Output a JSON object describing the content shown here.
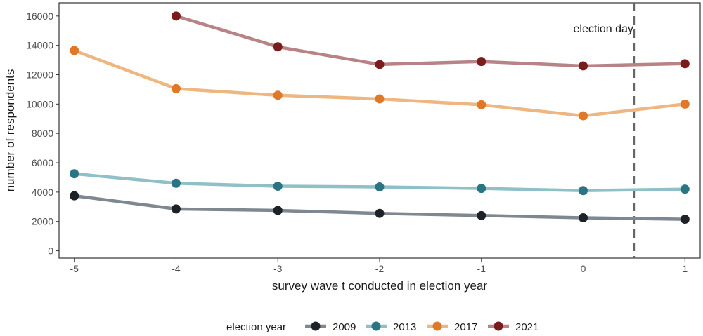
{
  "chart_data": {
    "type": "line",
    "xlabel": "survey wave t conducted in election year",
    "ylabel": "number of respondents",
    "xlim": [
      -5.15,
      1.15
    ],
    "ylim": [
      -500,
      16900
    ],
    "x_ticks": [
      -5,
      -4,
      -3,
      -2,
      -1,
      0,
      1
    ],
    "y_ticks": [
      0,
      2000,
      4000,
      6000,
      8000,
      10000,
      12000,
      14000,
      16000
    ],
    "grid": false,
    "annotation": {
      "text": "election day",
      "x": 0.5
    },
    "legend": {
      "title": "election year",
      "position": "bottom"
    },
    "series": [
      {
        "name": "2009",
        "color": "#1c2228",
        "line_color": "#7f8790",
        "x": [
          -5,
          -4,
          -3,
          -2,
          -1,
          0,
          1
        ],
        "values": [
          3750,
          2850,
          2750,
          2550,
          2400,
          2250,
          2150
        ]
      },
      {
        "name": "2013",
        "color": "#2a7484",
        "line_color": "#8fbfc7",
        "x": [
          -5,
          -4,
          -3,
          -2,
          -1,
          0,
          1
        ],
        "values": [
          5250,
          4600,
          4400,
          4350,
          4250,
          4100,
          4200
        ]
      },
      {
        "name": "2017",
        "color": "#e0782a",
        "line_color": "#eeb781",
        "x": [
          -5,
          -4,
          -3,
          -2,
          -1,
          0,
          1
        ],
        "values": [
          13650,
          11050,
          10600,
          10350,
          9950,
          9200,
          10000
        ]
      },
      {
        "name": "2021",
        "color": "#7a1c1c",
        "line_color": "#b88386",
        "x": [
          -4,
          -3,
          -2,
          -1,
          0,
          1
        ],
        "values": [
          16000,
          13900,
          12700,
          12900,
          12600,
          12750
        ]
      }
    ]
  }
}
